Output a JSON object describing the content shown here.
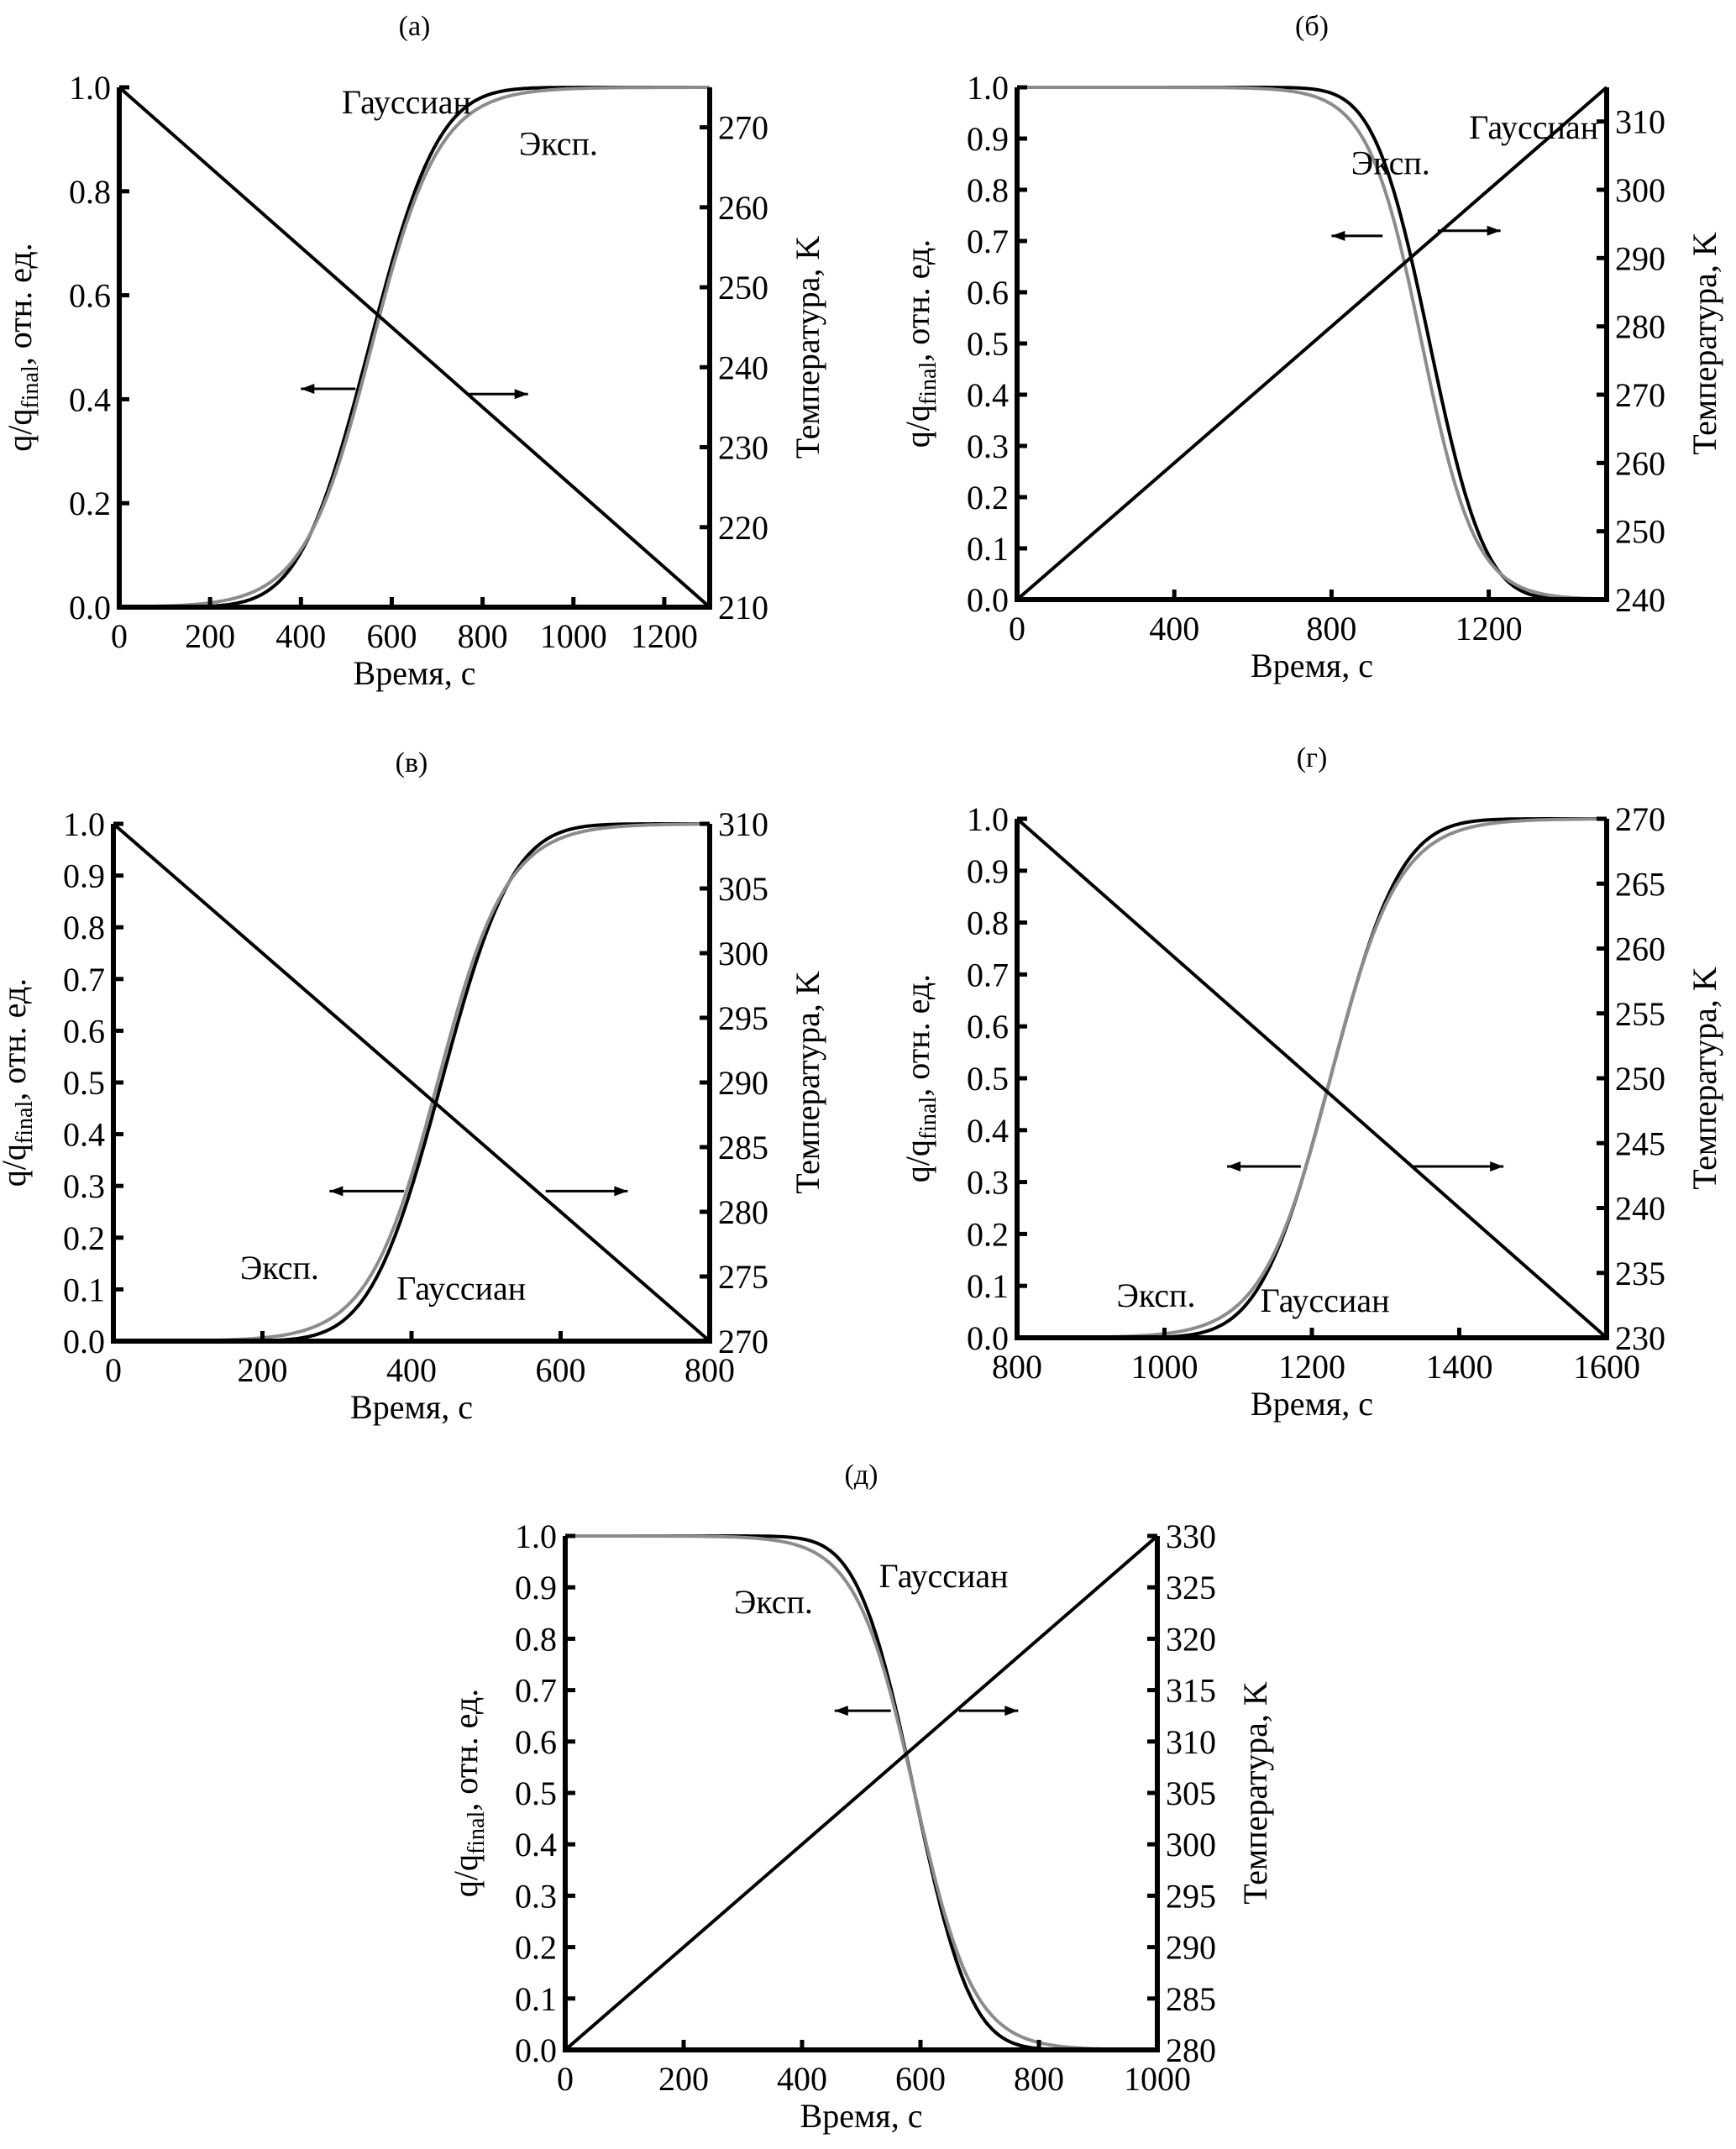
{
  "chart_data": [
    {
      "type": "line",
      "panel_label": "(а)",
      "xlabel": "Время, с",
      "ylabel_left": "q/q",
      "ylabel_left_sub": "final",
      "ylabel_left_suffix": ", отн. ед.",
      "ylabel_right": "Температура, K",
      "xlim": [
        0,
        1300
      ],
      "ylim_left": [
        0,
        1.0
      ],
      "ylim_right": [
        210,
        275
      ],
      "xticks": [
        0,
        200,
        400,
        600,
        800,
        1000,
        1200
      ],
      "xtick_labels": [
        "0",
        "200",
        "400",
        "600",
        "800",
        "1000",
        "1200"
      ],
      "yticks_left": [
        0.0,
        0.2,
        0.4,
        0.6,
        0.8,
        1.0
      ],
      "ytick_labels_left": [
        "0.0",
        "0.2",
        "0.4",
        "0.6",
        "0.8",
        "1.0"
      ],
      "yticks_right": [
        210,
        220,
        230,
        240,
        250,
        260,
        270
      ],
      "ytick_labels_right": [
        "210",
        "220",
        "230",
        "240",
        "250",
        "260",
        "270"
      ],
      "direction": "rising",
      "series": [
        {
          "name": "Гауссиан",
          "color": "#000000",
          "axis": "left",
          "model": "gauss",
          "center": 550,
          "width": 120
        },
        {
          "name": "Эксп.",
          "color": "#8c8c8c",
          "axis": "left",
          "model": "exp",
          "center": 555,
          "width": 120
        },
        {
          "name": "Temperature",
          "color": "#000000",
          "axis": "right",
          "model": "linear",
          "x": [
            0,
            1300
          ],
          "y": [
            275,
            210
          ]
        }
      ],
      "annotations": [
        {
          "text": "Гауссиан",
          "x": 490,
          "y": 0.95
        },
        {
          "text": "Эксп.",
          "x": 880,
          "y": 0.87
        }
      ],
      "arrows": [
        {
          "direction": "left",
          "x_from": 520,
          "x_to": 400,
          "y": 0.42
        },
        {
          "direction": "right",
          "x_from": 770,
          "x_to": 900,
          "y": 0.41
        }
      ]
    },
    {
      "type": "line",
      "panel_label": "(б)",
      "xlabel": "Время, с",
      "ylabel_left": "q/q",
      "ylabel_left_sub": "final",
      "ylabel_left_suffix": ", отн. ед.",
      "ylabel_right": "Температура, K",
      "xlim": [
        0,
        1500
      ],
      "ylim_left": [
        0,
        1.0
      ],
      "ylim_right": [
        240,
        315
      ],
      "xticks": [
        0,
        400,
        800,
        1200
      ],
      "xtick_labels": [
        "0",
        "400",
        "800",
        "1200"
      ],
      "yticks_left": [
        0.0,
        0.1,
        0.2,
        0.3,
        0.4,
        0.5,
        0.6,
        0.7,
        0.8,
        0.9,
        1.0
      ],
      "ytick_labels_left": [
        "0.0",
        "0.1",
        "0.2",
        "0.3",
        "0.4",
        "0.5",
        "0.6",
        "0.7",
        "0.8",
        "0.9",
        "1.0"
      ],
      "yticks_right": [
        240,
        250,
        260,
        270,
        280,
        290,
        300,
        310
      ],
      "ytick_labels_right": [
        "240",
        "250",
        "260",
        "270",
        "280",
        "290",
        "300",
        "310"
      ],
      "direction": "falling",
      "series": [
        {
          "name": "Гауссиан",
          "color": "#000000",
          "axis": "left",
          "model": "gauss",
          "center": 1050,
          "width": 110
        },
        {
          "name": "Эксп.",
          "color": "#8c8c8c",
          "axis": "left",
          "model": "exp",
          "center": 1030,
          "width": 110
        },
        {
          "name": "Temperature",
          "color": "#000000",
          "axis": "right",
          "model": "linear",
          "x": [
            0,
            1500
          ],
          "y": [
            240,
            315
          ]
        }
      ],
      "annotations": [
        {
          "text": "Гауссиан",
          "x": 1150,
          "y": 0.9
        },
        {
          "text": "Эксп.",
          "x": 850,
          "y": 0.83
        }
      ],
      "arrows": [
        {
          "direction": "left",
          "x_from": 930,
          "x_to": 800,
          "y": 0.71
        },
        {
          "direction": "right",
          "x_from": 1070,
          "x_to": 1230,
          "y": 0.72
        }
      ]
    },
    {
      "type": "line",
      "panel_label": "(в)",
      "xlabel": "Время, с",
      "ylabel_left": "q/q",
      "ylabel_left_sub": "final",
      "ylabel_left_suffix": ", отн. ед.",
      "ylabel_right": "Температура, K",
      "xlim": [
        0,
        800
      ],
      "ylim_left": [
        0,
        1.0
      ],
      "ylim_right": [
        270,
        310
      ],
      "xticks": [
        0,
        200,
        400,
        600,
        800
      ],
      "xtick_labels": [
        "0",
        "200",
        "400",
        "600",
        "800"
      ],
      "yticks_left": [
        0.0,
        0.1,
        0.2,
        0.3,
        0.4,
        0.5,
        0.6,
        0.7,
        0.8,
        0.9,
        1.0
      ],
      "ytick_labels_left": [
        "0.0",
        "0.1",
        "0.2",
        "0.3",
        "0.4",
        "0.5",
        "0.6",
        "0.7",
        "0.8",
        "0.9",
        "1.0"
      ],
      "yticks_right": [
        270,
        275,
        280,
        285,
        290,
        295,
        300,
        305,
        310
      ],
      "ytick_labels_right": [
        "270",
        "275",
        "280",
        "285",
        "290",
        "295",
        "300",
        "305",
        "310"
      ],
      "direction": "rising",
      "series": [
        {
          "name": "Гауссиан",
          "color": "#000000",
          "axis": "left",
          "model": "gauss",
          "center": 440,
          "width": 75
        },
        {
          "name": "Эксп.",
          "color": "#8c8c8c",
          "axis": "left",
          "model": "exp",
          "center": 435,
          "width": 75
        },
        {
          "name": "Temperature",
          "color": "#000000",
          "axis": "right",
          "model": "linear",
          "x": [
            0,
            800
          ],
          "y": [
            310,
            270
          ]
        }
      ],
      "annotations": [
        {
          "text": "Эксп.",
          "x": 170,
          "y": 0.12
        },
        {
          "text": "Гауссиан",
          "x": 380,
          "y": 0.08
        }
      ],
      "arrows": [
        {
          "direction": "left",
          "x_from": 390,
          "x_to": 290,
          "y": 0.29
        },
        {
          "direction": "right",
          "x_from": 580,
          "x_to": 690,
          "y": 0.29
        }
      ]
    },
    {
      "type": "line",
      "panel_label": "(г)",
      "xlabel": "Время, с",
      "ylabel_left": "q/q",
      "ylabel_left_sub": "final",
      "ylabel_left_suffix": ", отн. ед.",
      "ylabel_right": "Температура, K",
      "xlim": [
        800,
        1600
      ],
      "ylim_left": [
        0,
        1.0
      ],
      "ylim_right": [
        230,
        270
      ],
      "xticks": [
        800,
        1000,
        1200,
        1400,
        1600
      ],
      "xtick_labels": [
        "800",
        "1000",
        "1200",
        "1400",
        "1600"
      ],
      "yticks_left": [
        0.0,
        0.1,
        0.2,
        0.3,
        0.4,
        0.5,
        0.6,
        0.7,
        0.8,
        0.9,
        1.0
      ],
      "ytick_labels_left": [
        "0.0",
        "0.1",
        "0.2",
        "0.3",
        "0.4",
        "0.5",
        "0.6",
        "0.7",
        "0.8",
        "0.9",
        "1.0"
      ],
      "yticks_right": [
        230,
        235,
        240,
        245,
        250,
        255,
        260,
        265,
        270
      ],
      "ytick_labels_right": [
        "230",
        "235",
        "240",
        "245",
        "250",
        "255",
        "260",
        "265",
        "270"
      ],
      "direction": "rising",
      "series": [
        {
          "name": "Гауссиан",
          "color": "#000000",
          "axis": "left",
          "model": "gauss",
          "center": 1225,
          "width": 75
        },
        {
          "name": "Эксп.",
          "color": "#8c8c8c",
          "axis": "left",
          "model": "exp",
          "center": 1225,
          "width": 75
        },
        {
          "name": "Temperature",
          "color": "#000000",
          "axis": "right",
          "model": "linear",
          "x": [
            800,
            1600
          ],
          "y": [
            270,
            230
          ]
        }
      ],
      "annotations": [
        {
          "text": "Эксп.",
          "x": 935,
          "y": 0.06
        },
        {
          "text": "Гауссиан",
          "x": 1130,
          "y": 0.05
        }
      ],
      "arrows": [
        {
          "direction": "left",
          "x_from": 1185,
          "x_to": 1085,
          "y": 0.33
        },
        {
          "direction": "right",
          "x_from": 1335,
          "x_to": 1460,
          "y": 0.33
        }
      ]
    },
    {
      "type": "line",
      "panel_label": "(д)",
      "xlabel": "Время, с",
      "ylabel_left": "q/q",
      "ylabel_left_sub": "final",
      "ylabel_left_suffix": ", отн. ед.",
      "ylabel_right": "Температура, K",
      "xlim": [
        0,
        1000
      ],
      "ylim_left": [
        0,
        1.0
      ],
      "ylim_right": [
        280,
        330
      ],
      "xticks": [
        0,
        200,
        400,
        600,
        800,
        1000
      ],
      "xtick_labels": [
        "0",
        "200",
        "400",
        "600",
        "800",
        "1000"
      ],
      "yticks_left": [
        0.0,
        0.1,
        0.2,
        0.3,
        0.4,
        0.5,
        0.6,
        0.7,
        0.8,
        0.9,
        1.0
      ],
      "ytick_labels_left": [
        "0.0",
        "0.1",
        "0.2",
        "0.3",
        "0.4",
        "0.5",
        "0.6",
        "0.7",
        "0.8",
        "0.9",
        "1.0"
      ],
      "yticks_right": [
        280,
        285,
        290,
        295,
        300,
        305,
        310,
        315,
        320,
        325,
        330
      ],
      "ytick_labels_right": [
        "280",
        "285",
        "290",
        "295",
        "300",
        "305",
        "310",
        "315",
        "320",
        "325",
        "330"
      ],
      "direction": "falling",
      "series": [
        {
          "name": "Гауссиан",
          "color": "#000000",
          "axis": "left",
          "model": "gauss",
          "center": 590,
          "width": 75
        },
        {
          "name": "Эксп.",
          "color": "#8c8c8c",
          "axis": "left",
          "model": "exp",
          "center": 590,
          "width": 80
        },
        {
          "name": "Temperature",
          "color": "#000000",
          "axis": "right",
          "model": "linear",
          "x": [
            0,
            1000
          ],
          "y": [
            280,
            330
          ]
        }
      ],
      "annotations": [
        {
          "text": "Гауссиан",
          "x": 530,
          "y": 0.9
        },
        {
          "text": "Эксп.",
          "x": 285,
          "y": 0.85
        }
      ],
      "arrows": [
        {
          "direction": "left",
          "x_from": 550,
          "x_to": 455,
          "y": 0.66
        },
        {
          "direction": "right",
          "x_from": 665,
          "x_to": 765,
          "y": 0.66
        }
      ]
    }
  ]
}
